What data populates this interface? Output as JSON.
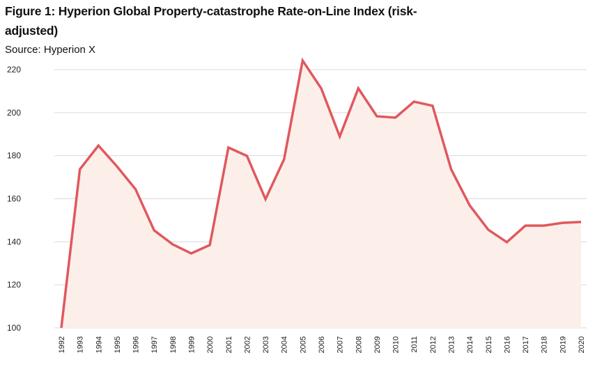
{
  "chart_data": {
    "type": "area",
    "title": "Figure 1: Hyperion Global Property-catastrophe Rate-on-Line Index (risk-adjusted)",
    "subtitle": "Source: Hyperion X",
    "xlabel": "",
    "ylabel": "",
    "ylim": [
      100,
      220
    ],
    "yticks": [
      100,
      120,
      140,
      160,
      180,
      200,
      220
    ],
    "categories": [
      "1992",
      "1993",
      "1994",
      "1995",
      "1996",
      "1997",
      "1998",
      "1999",
      "2000",
      "2001",
      "2002",
      "2003",
      "2004",
      "2005",
      "2006",
      "2007",
      "2008",
      "2009",
      "2010",
      "2011",
      "2012",
      "2013",
      "2014",
      "2015",
      "2016",
      "2017",
      "2018",
      "2019",
      "2020"
    ],
    "values": [
      100,
      173.7,
      184.7,
      175,
      164.4,
      145.3,
      138.8,
      134.6,
      138.5,
      183.8,
      179.9,
      159.8,
      178.3,
      224.2,
      211.3,
      188.9,
      211.3,
      198.3,
      197.7,
      205.1,
      203.2,
      173.7,
      156.9,
      145.6,
      139.8,
      147.5,
      147.5,
      148.8,
      149.2
    ],
    "grid": true,
    "legend": "none",
    "colors": {
      "line": "#e0585e",
      "fill": "#fcefea",
      "grid": "#d9d9d9"
    }
  }
}
